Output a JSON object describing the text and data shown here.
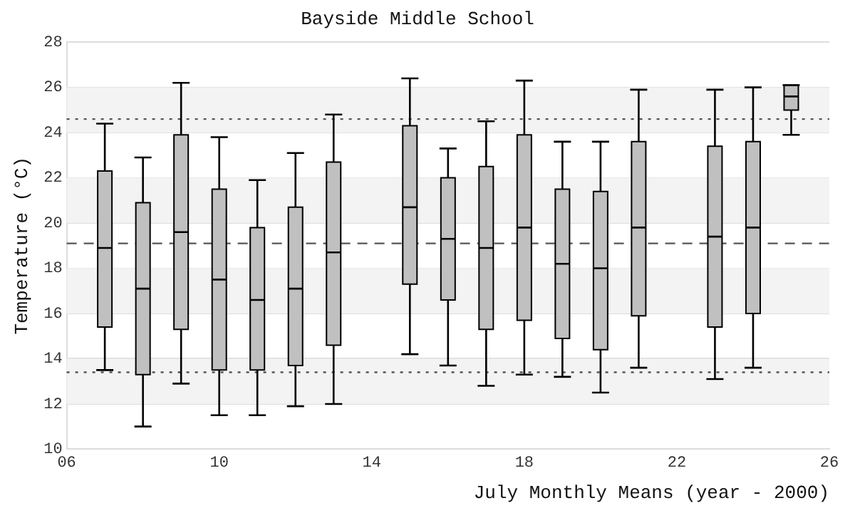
{
  "chart_data": {
    "type": "box",
    "title": "Bayside Middle School",
    "xlabel": "July Monthly Means (year - 2000)",
    "ylabel": "Temperature (°C)",
    "x": [
      7,
      8,
      9,
      10,
      11,
      12,
      13,
      15,
      16,
      17,
      18,
      19,
      20,
      21,
      23,
      24,
      25
    ],
    "color": "#c0c0c0",
    "boxes": [
      {
        "low": 13.5,
        "q1": 15.4,
        "median": 18.9,
        "q3": 22.3,
        "high": 24.4
      },
      {
        "low": 11.0,
        "q1": 13.3,
        "median": 17.1,
        "q3": 20.9,
        "high": 22.9
      },
      {
        "low": 12.9,
        "q1": 15.3,
        "median": 19.6,
        "q3": 23.9,
        "high": 26.2
      },
      {
        "low": 11.5,
        "q1": 13.5,
        "median": 17.5,
        "q3": 21.5,
        "high": 23.8
      },
      {
        "low": 11.5,
        "q1": 13.5,
        "median": 16.6,
        "q3": 19.8,
        "high": 21.9
      },
      {
        "low": 11.9,
        "q1": 13.7,
        "median": 17.1,
        "q3": 20.7,
        "high": 23.1
      },
      {
        "low": 12.0,
        "q1": 14.6,
        "median": 18.7,
        "q3": 22.7,
        "high": 24.8
      },
      {
        "low": 14.2,
        "q1": 17.3,
        "median": 20.7,
        "q3": 24.3,
        "high": 26.4
      },
      {
        "low": 13.7,
        "q1": 16.6,
        "median": 19.3,
        "q3": 22.0,
        "high": 23.3
      },
      {
        "low": 12.8,
        "q1": 15.3,
        "median": 18.9,
        "q3": 22.5,
        "high": 24.5
      },
      {
        "low": 13.3,
        "q1": 15.7,
        "median": 19.8,
        "q3": 23.9,
        "high": 26.3
      },
      {
        "low": 13.2,
        "q1": 14.9,
        "median": 18.2,
        "q3": 21.5,
        "high": 23.6
      },
      {
        "low": 12.5,
        "q1": 14.4,
        "median": 18.0,
        "q3": 21.4,
        "high": 23.6
      },
      {
        "low": 13.6,
        "q1": 15.9,
        "median": 19.8,
        "q3": 23.6,
        "high": 25.9
      },
      {
        "low": 13.1,
        "q1": 15.4,
        "median": 19.4,
        "q3": 23.4,
        "high": 25.9
      },
      {
        "low": 13.6,
        "q1": 16.0,
        "median": 19.8,
        "q3": 23.6,
        "high": 26.0
      },
      {
        "low": 23.9,
        "q1": 25.0,
        "median": 25.6,
        "q3": 26.1,
        "high": 26.1
      }
    ],
    "xlim": [
      6,
      26
    ],
    "xticks": [
      {
        "value": 6,
        "label": "06"
      },
      10,
      14,
      18,
      22,
      26
    ],
    "ylim": [
      10,
      28
    ],
    "yticks": [
      10,
      12,
      14,
      16,
      18,
      20,
      22,
      24,
      26,
      28
    ],
    "grid": "y",
    "ref_lines": [
      {
        "axis": "y",
        "value": 24.6,
        "line_style": "dotted",
        "color": "#555555"
      },
      {
        "axis": "y",
        "value": 19.1,
        "line_style": "dashed",
        "color": "#555555"
      },
      {
        "axis": "y",
        "value": 13.4,
        "line_style": "dotted",
        "color": "#555555"
      }
    ]
  }
}
